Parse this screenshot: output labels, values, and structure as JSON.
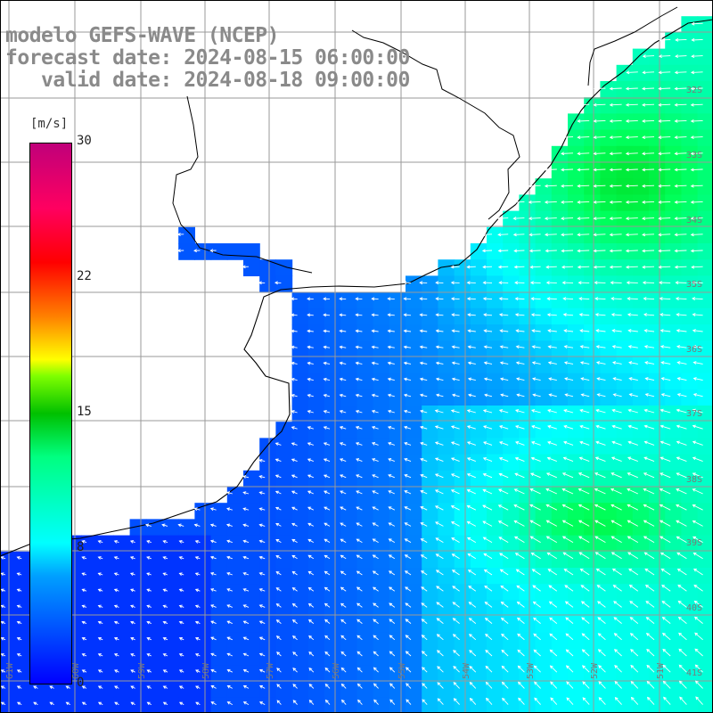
{
  "title": {
    "line1": "modelo GEFS-WAVE (NCEP)",
    "line2": "forecast date: 2024-08-15 06:00:00",
    "line3": "   valid date: 2024-08-18 09:00:00"
  },
  "colorbar": {
    "unit": "[m/s]",
    "ticks": [
      "30",
      "22",
      "15",
      "8",
      "0"
    ],
    "range": [
      0,
      30
    ],
    "colors": [
      "#0000ff",
      "#00a0ff",
      "#00ffff",
      "#00ff80",
      "#00c000",
      "#80ff00",
      "#ffff00",
      "#ff8000",
      "#ff0000",
      "#ff0060",
      "#c0007a"
    ]
  },
  "map": {
    "lat_labels": [
      "32S",
      "33S",
      "34S",
      "35S",
      "36S",
      "37S",
      "38S",
      "39S",
      "40S",
      "41S"
    ],
    "lon_labels": [
      "61W",
      "60W",
      "59W",
      "58W",
      "57W",
      "56W",
      "55W",
      "54W",
      "53W",
      "52W",
      "51W"
    ],
    "background": "#ffffff",
    "grid_color": "#9a9a9a",
    "coast_color": "#000000",
    "arrow_color": "#ffffff",
    "dominant_wind_direction": "from east / southeast (arrows pointing west and southwest)"
  }
}
